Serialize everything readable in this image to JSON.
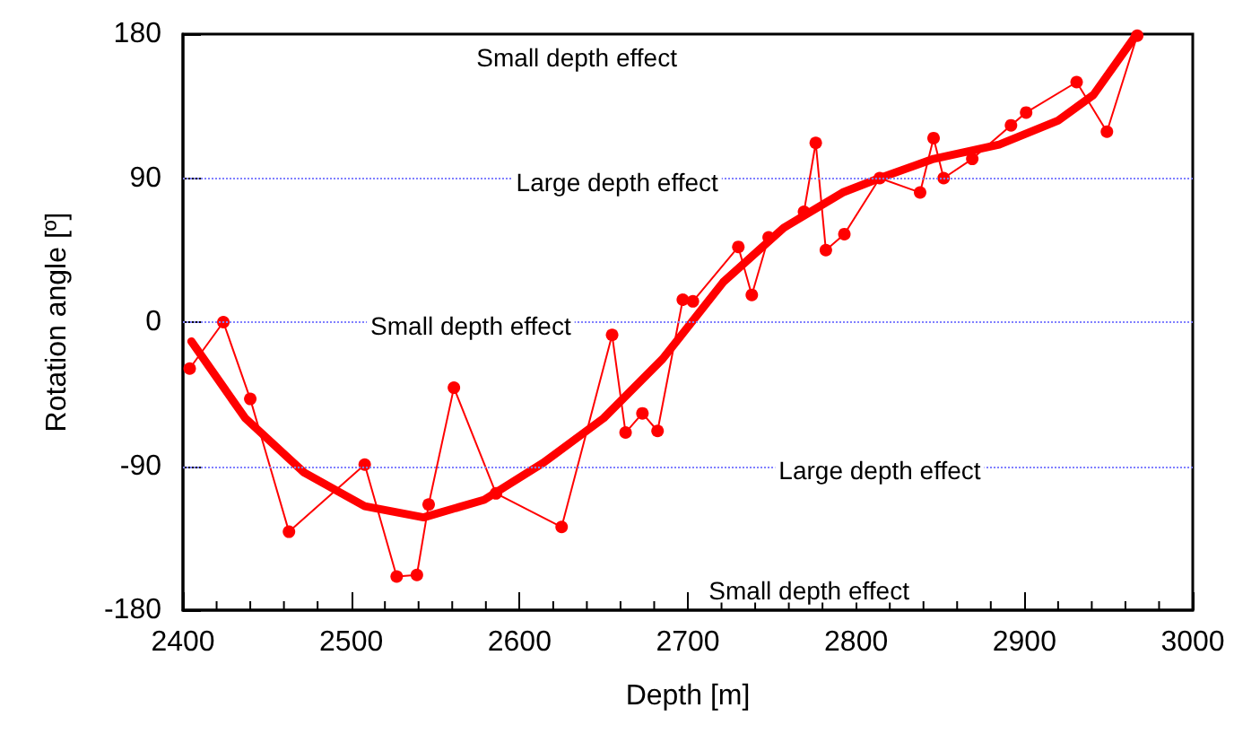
{
  "chart_data": {
    "type": "line",
    "xlabel": "Depth [m]",
    "ylabel": "Rotation angle [º]",
    "xlim": [
      2400,
      3000
    ],
    "xticks": [
      2400,
      2500,
      2600,
      2700,
      2800,
      2900,
      3000
    ],
    "ylim": [
      -180,
      180
    ],
    "yticks": [
      -180,
      -90,
      0,
      90,
      180
    ],
    "grid": false,
    "line_style": "solid",
    "series": [
      {
        "color": "#ff0000",
        "marker": "circle",
        "x": [
          2404,
          2424,
          2440,
          2463,
          2508,
          2527,
          2539,
          2546,
          2561,
          2586,
          2625,
          2655,
          2663,
          2673,
          2682,
          2697,
          2703,
          2730,
          2738,
          2748,
          2769,
          2776,
          2782,
          2793,
          2814,
          2838,
          2846,
          2852,
          2869,
          2892,
          2901,
          2931,
          2949,
          2967
        ],
        "values": [
          -29,
          0,
          -48,
          -131,
          -89,
          -159,
          -158,
          -114,
          -41,
          -107,
          -128,
          -8,
          -69,
          -57,
          -68,
          14,
          13,
          47,
          17,
          53,
          69,
          112,
          45,
          55,
          90,
          81,
          115,
          90,
          102,
          123,
          131,
          150,
          119,
          179
        ]
      },
      {
        "color": "#ff0000",
        "marker": "none",
        "x": [
          2405,
          2437,
          2472,
          2508,
          2543,
          2579,
          2614,
          2650,
          2685,
          2721,
          2757,
          2792,
          2814,
          2846,
          2885,
          2920,
          2941,
          2966
        ],
        "values": [
          -12,
          -60,
          -94,
          -115,
          -122,
          -111,
          -88,
          -60,
          -23,
          25,
          59,
          81,
          90,
          102,
          111,
          126,
          142,
          179
        ]
      }
    ],
    "ref_lines": [
      {
        "axis": "y",
        "value": 90,
        "color": "#8080ff",
        "line_style": "dotted",
        "label": "Large depth effect"
      },
      {
        "axis": "y",
        "value": 0,
        "color": "#8080ff",
        "line_style": "dotted",
        "label": "Small depth effect"
      },
      {
        "axis": "y",
        "value": -90,
        "color": "#8080ff",
        "line_style": "dotted",
        "label": "Large depth effect"
      }
    ],
    "annotations": [
      "Small depth effect",
      "Small depth effect"
    ]
  }
}
